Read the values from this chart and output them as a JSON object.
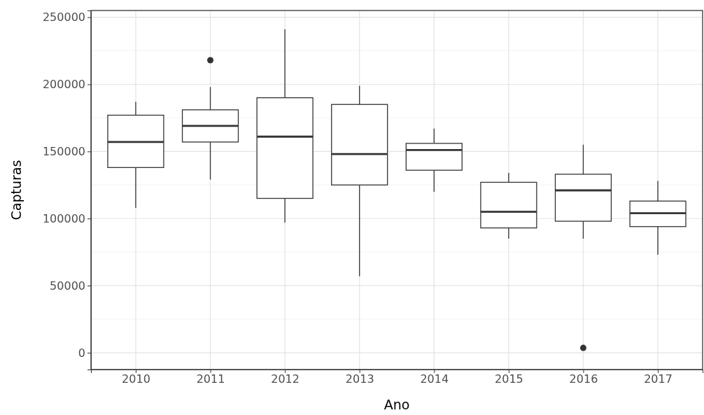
{
  "chart_data": {
    "type": "box",
    "xlabel": "Ano",
    "ylabel": "Capturas",
    "categories": [
      "2010",
      "2011",
      "2012",
      "2013",
      "2014",
      "2015",
      "2016",
      "2017"
    ],
    "boxes": [
      {
        "low": 108000,
        "q1": 138000,
        "median": 157000,
        "q3": 177000,
        "high": 187000
      },
      {
        "low": 129000,
        "q1": 157000,
        "median": 169000,
        "q3": 181000,
        "high": 198000,
        "outliers": [
          218000
        ]
      },
      {
        "low": 97000,
        "q1": 115000,
        "median": 161000,
        "q3": 190000,
        "high": 241000
      },
      {
        "low": 57000,
        "q1": 125000,
        "median": 148000,
        "q3": 185000,
        "high": 199000
      },
      {
        "low": 120000,
        "q1": 136000,
        "median": 151000,
        "q3": 156000,
        "high": 167000
      },
      {
        "low": 85000,
        "q1": 93000,
        "median": 105000,
        "q3": 127000,
        "high": 134000
      },
      {
        "low": 85000,
        "q1": 98000,
        "median": 121000,
        "q3": 133000,
        "high": 155000,
        "outliers": [
          3600
        ]
      },
      {
        "low": 73000,
        "q1": 94000,
        "median": 104000,
        "q3": 113000,
        "high": 128000
      }
    ],
    "color": "#333333",
    "ylim": [
      -12500,
      255000
    ],
    "yticks": [
      0,
      50000,
      100000,
      150000,
      200000,
      250000
    ],
    "grid": true
  }
}
